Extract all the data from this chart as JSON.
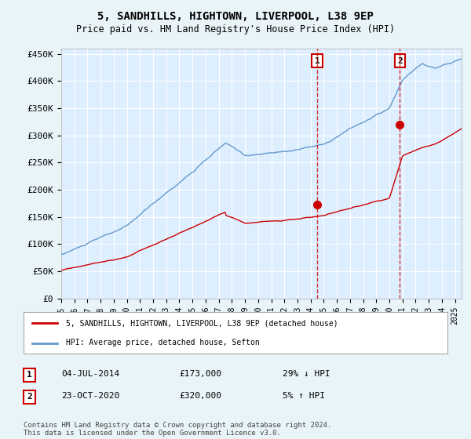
{
  "title": "5, SANDHILLS, HIGHTOWN, LIVERPOOL, L38 9EP",
  "subtitle": "Price paid vs. HM Land Registry's House Price Index (HPI)",
  "background_color": "#e8f4f8",
  "plot_bg_color": "#ddeeff",
  "grid_color": "#ffffff",
  "ylabel_ticks": [
    "£0",
    "£50K",
    "£100K",
    "£150K",
    "£200K",
    "£250K",
    "£300K",
    "£350K",
    "£400K",
    "£450K"
  ],
  "ytick_values": [
    0,
    50000,
    100000,
    150000,
    200000,
    250000,
    300000,
    350000,
    400000,
    450000
  ],
  "ylim": [
    0,
    460000
  ],
  "xlim_start": 1995.0,
  "xlim_end": 2025.5,
  "x_tick_years": [
    1995,
    1996,
    1997,
    1998,
    1999,
    2000,
    2001,
    2002,
    2003,
    2004,
    2005,
    2006,
    2007,
    2008,
    2009,
    2010,
    2011,
    2012,
    2013,
    2014,
    2015,
    2016,
    2017,
    2018,
    2019,
    2020,
    2021,
    2022,
    2023,
    2024,
    2025
  ],
  "red_line_color": "#cc0000",
  "blue_line_color": "#6699cc",
  "marker1_x": 2014.5,
  "marker1_y": 173000,
  "marker2_x": 2020.8,
  "marker2_y": 320000,
  "annotation1_date": "04-JUL-2014",
  "annotation1_price": "£173,000",
  "annotation1_hpi": "29% ↓ HPI",
  "annotation2_date": "23-OCT-2020",
  "annotation2_price": "£320,000",
  "annotation2_hpi": "5% ↑ HPI",
  "legend_line1": "5, SANDHILLS, HIGHTOWN, LIVERPOOL, L38 9EP (detached house)",
  "legend_line2": "HPI: Average price, detached house, Sefton",
  "footer": "Contains HM Land Registry data © Crown copyright and database right 2024.\nThis data is licensed under the Open Government Licence v3.0.",
  "vline1_x": 2014.5,
  "vline2_x": 2020.8
}
